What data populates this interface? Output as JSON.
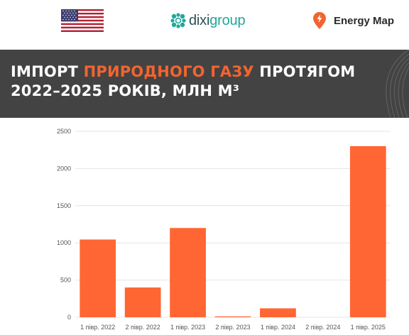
{
  "header": {
    "flag_icon": "usa-flag-icon",
    "dixi_logo": {
      "prefix": "dixi",
      "suffix": "group",
      "colors": {
        "text": "#2f4f57",
        "accent": "#20a89a"
      }
    },
    "energy_map_logo": {
      "label": "Energy Map",
      "pin_color": "#f26430"
    }
  },
  "title": {
    "part1": "ІМПОРТ ",
    "highlight": "ПРИРОДНОГО ГАЗУ",
    "part2": " ПРОТЯГОМ",
    "line2": "2022–2025 РОКІВ, МЛН М³",
    "colors": {
      "banner": "#434343",
      "highlight": "#f26430",
      "text": "#ffffff"
    }
  },
  "chart_data": {
    "type": "bar",
    "title": "ІМПОРТ ПРИРОДНОГО ГАЗУ ПРОТЯГОМ 2022–2025 РОКІВ, МЛН М³",
    "xlabel": "",
    "ylabel": "",
    "categories": [
      "1 півр. 2022",
      "2 півр. 2022",
      "1 півр. 2023",
      "2 півр. 2023",
      "1 півр. 2024",
      "2 півр. 2024",
      "1 півр. 2025"
    ],
    "values": [
      1045,
      400,
      1200,
      10,
      120,
      0,
      2300
    ],
    "ylim": [
      0,
      2500
    ],
    "yticks": [
      0,
      500,
      1000,
      1500,
      2000,
      2500
    ],
    "grid": true,
    "legend": "none",
    "bar_color": "#ff6633"
  }
}
